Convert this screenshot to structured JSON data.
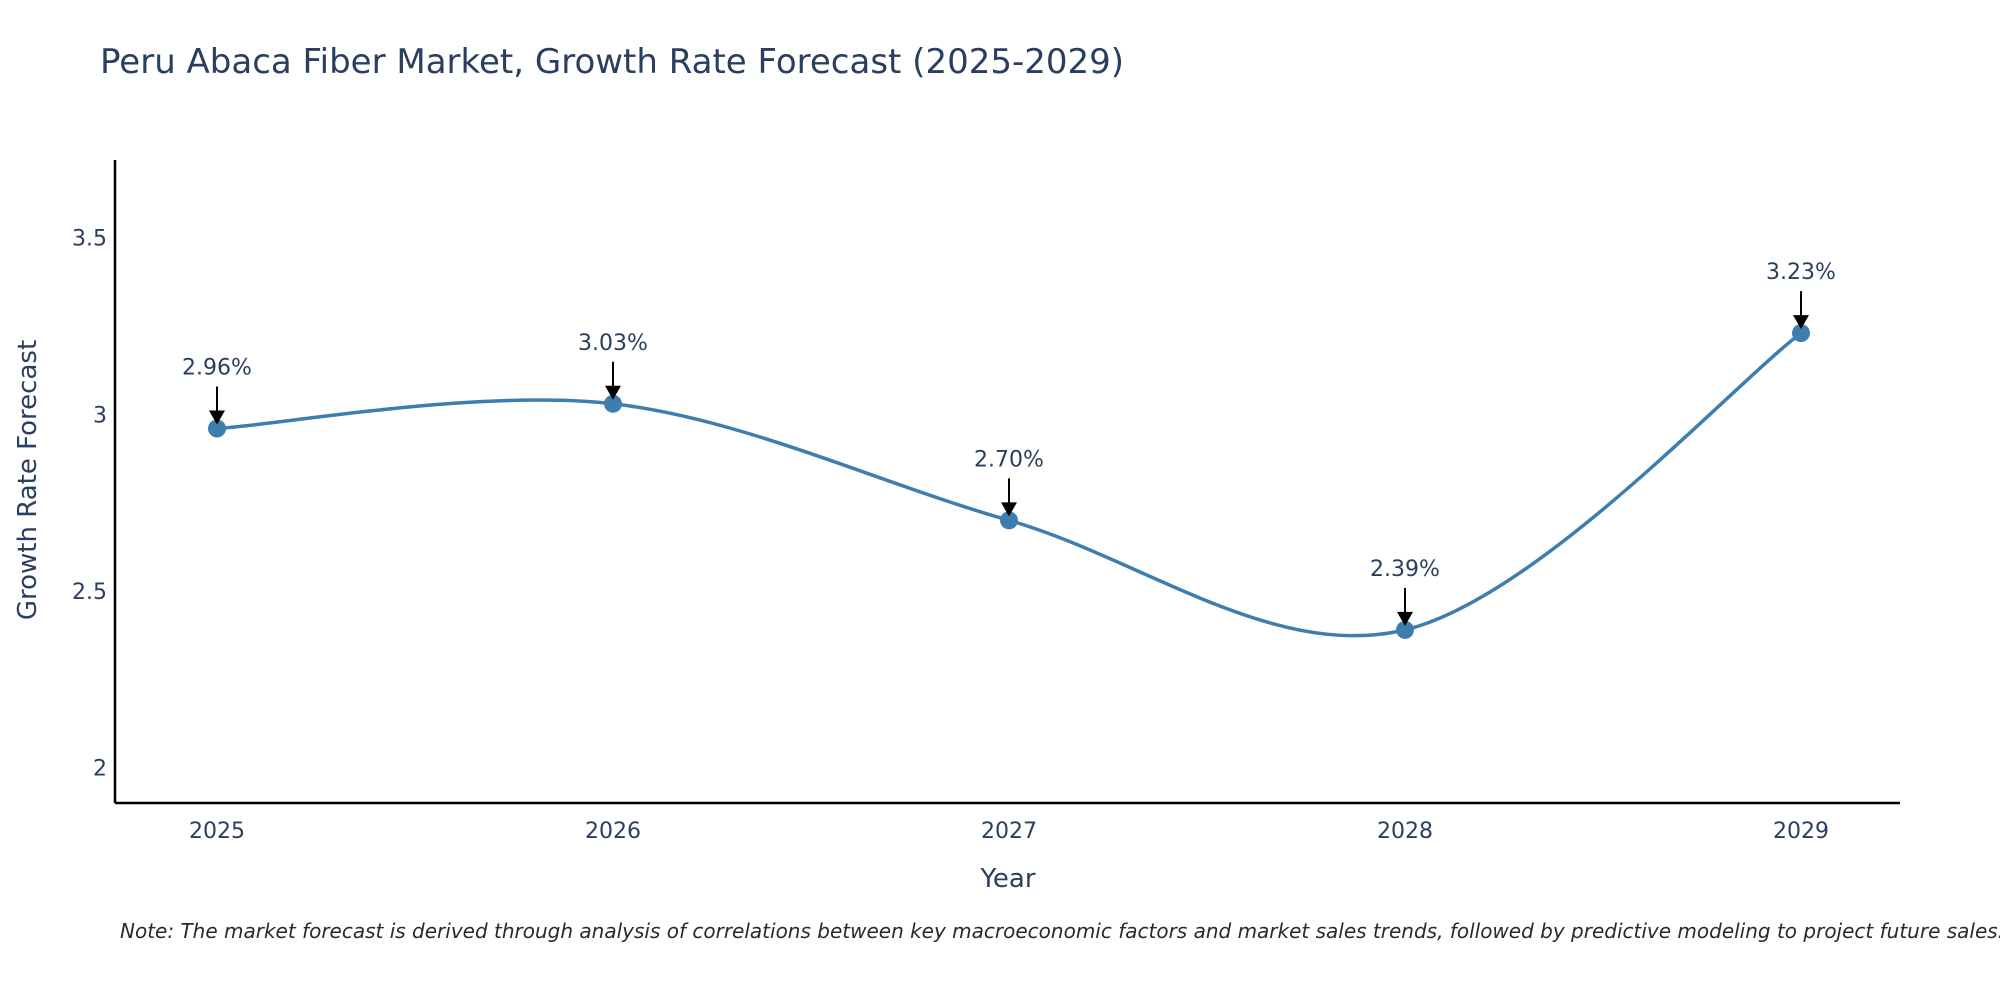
{
  "chart_data": {
    "type": "line",
    "title": "Peru Abaca Fiber Market, Growth Rate Forecast (2025-2029)",
    "xlabel": "Year",
    "ylabel": "Growth Rate Forecast",
    "categories": [
      "2025",
      "2026",
      "2027",
      "2028",
      "2029"
    ],
    "values": [
      2.96,
      3.03,
      2.7,
      2.39,
      3.23
    ],
    "data_labels": [
      "2.96%",
      "3.03%",
      "2.70%",
      "2.39%",
      "3.23%"
    ],
    "y_ticks": [
      2,
      2.5,
      3,
      3.5
    ],
    "y_tick_labels": [
      "2",
      "2.5",
      "3",
      "3.5"
    ],
    "ylim": [
      1.9,
      3.72
    ],
    "grid": false,
    "legend": "none",
    "line_color": "#3d7eae",
    "marker_color": "#3d7eae",
    "note": "Note: The market forecast is derived through analysis of correlations between key macroeconomic factors and market sales trends, followed by predictive modeling to project future sales."
  }
}
